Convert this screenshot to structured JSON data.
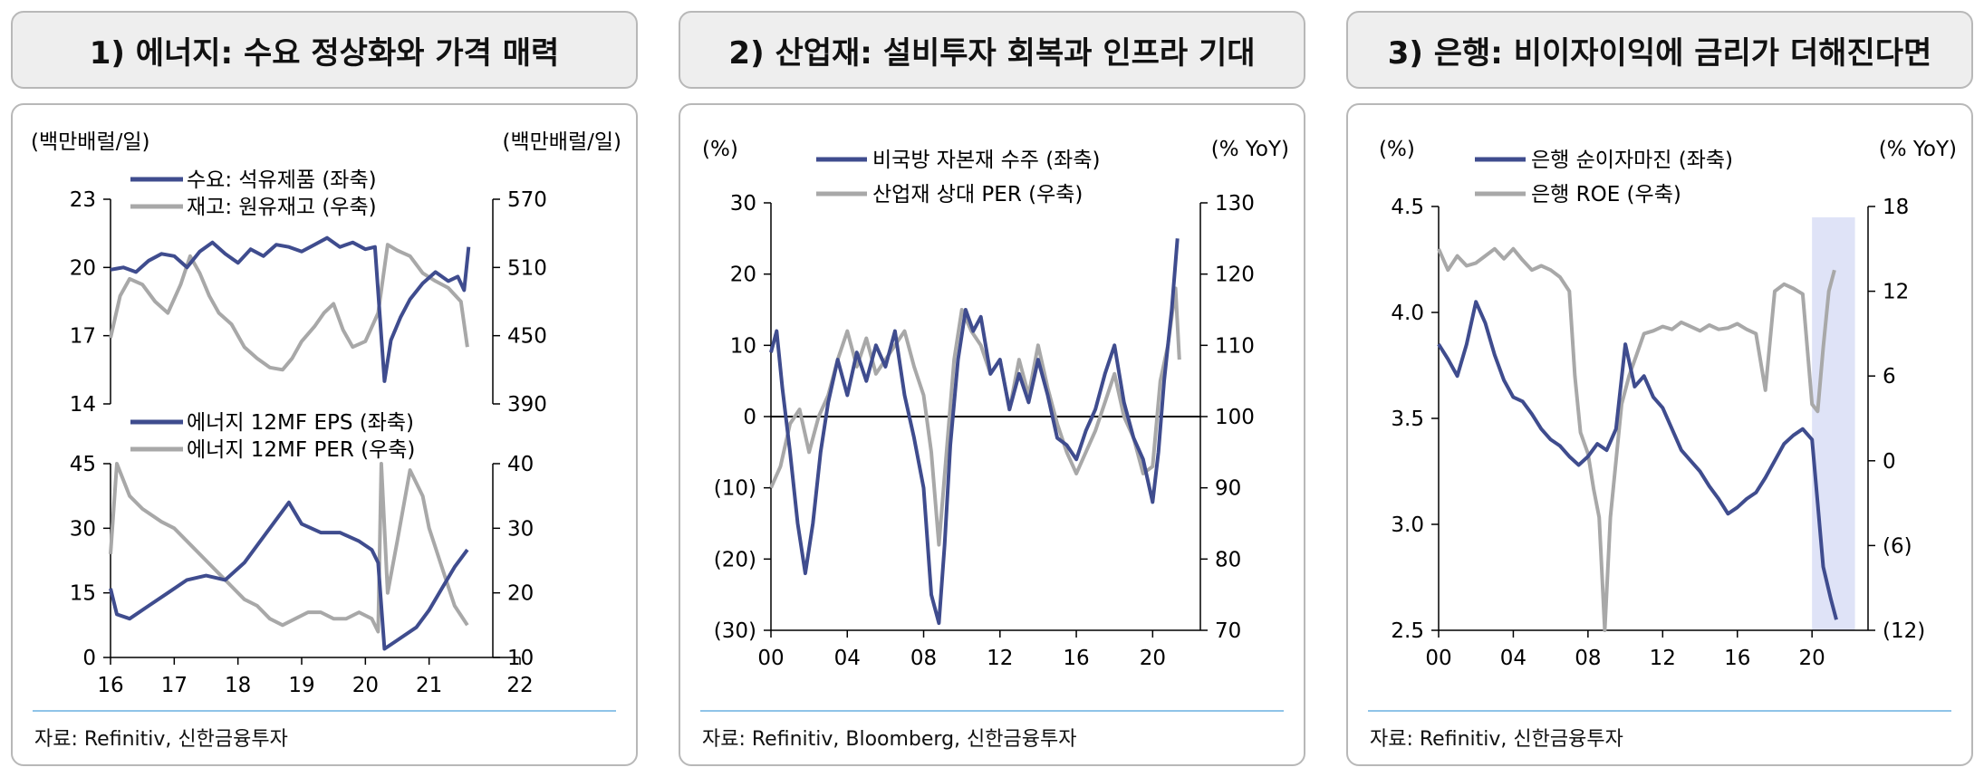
{
  "panels": [
    {
      "title": "1) 에너지: 수요 정상화와 가격 매력",
      "source": "자료: Refinitiv, 신한금융투자"
    },
    {
      "title": "2) 산업재: 설비투자 회복과 인프라 기대",
      "source": "자료: Refinitiv, Bloomberg, 신한금융투자"
    },
    {
      "title": "3) 은행: 비이자이익에 금리가 더해진다면",
      "source": "자료: Refinitiv, 신한금융투자"
    }
  ],
  "chart_data": [
    {
      "type": "line",
      "panel": 1,
      "left_unit": "(백만배럴/일)",
      "right_unit": "(백만배럴/일)",
      "x_ticks": [
        "16",
        "17",
        "18",
        "19",
        "20",
        "21",
        "22"
      ],
      "xlim": [
        2016,
        2022
      ],
      "ylim_left": [
        14,
        23
      ],
      "yticks_left": [
        "23",
        "20",
        "17",
        "14"
      ],
      "ylim_right": [
        390,
        570
      ],
      "yticks_right": [
        "570",
        "510",
        "450",
        "390"
      ],
      "colors": {
        "left": "#3f4c8e",
        "right": "#a8a8a8"
      },
      "series": [
        {
          "name": "수요: 석유제품 (좌축)",
          "axis": "left",
          "x": [
            2016.0,
            2016.2,
            2016.4,
            2016.6,
            2016.8,
            2017.0,
            2017.2,
            2017.4,
            2017.6,
            2017.8,
            2018.0,
            2018.2,
            2018.4,
            2018.6,
            2018.8,
            2019.0,
            2019.2,
            2019.4,
            2019.6,
            2019.8,
            2020.0,
            2020.15,
            2020.3,
            2020.4,
            2020.55,
            2020.7,
            2020.9,
            2021.1,
            2021.3,
            2021.45,
            2021.55,
            2021.62
          ],
          "y": [
            19.9,
            20.0,
            19.8,
            20.3,
            20.6,
            20.5,
            20.0,
            20.7,
            21.1,
            20.6,
            20.2,
            20.8,
            20.5,
            21.0,
            20.9,
            20.7,
            21.0,
            21.3,
            20.9,
            21.1,
            20.8,
            20.9,
            15.0,
            16.8,
            17.8,
            18.6,
            19.3,
            19.8,
            19.4,
            19.6,
            19.0,
            20.9
          ]
        },
        {
          "name": "재고: 원유재고 (우축)",
          "axis": "right",
          "x": [
            2016.0,
            2016.15,
            2016.3,
            2016.5,
            2016.7,
            2016.9,
            2017.1,
            2017.25,
            2017.4,
            2017.55,
            2017.7,
            2017.9,
            2018.1,
            2018.3,
            2018.5,
            2018.7,
            2018.85,
            2019.0,
            2019.2,
            2019.35,
            2019.5,
            2019.65,
            2019.8,
            2020.0,
            2020.2,
            2020.35,
            2020.5,
            2020.7,
            2020.9,
            2021.1,
            2021.3,
            2021.5,
            2021.6
          ],
          "y": [
            448,
            485,
            500,
            495,
            480,
            470,
            495,
            520,
            505,
            485,
            470,
            460,
            440,
            430,
            422,
            420,
            430,
            445,
            458,
            470,
            478,
            455,
            440,
            445,
            470,
            530,
            525,
            520,
            505,
            498,
            492,
            480,
            440
          ]
        }
      ],
      "sub_chart": {
        "type": "line",
        "x_ticks": [
          "16",
          "17",
          "18",
          "19",
          "20",
          "21",
          "22"
        ],
        "ylim_left": [
          0,
          45
        ],
        "yticks_left": [
          "45",
          "30",
          "15",
          "0"
        ],
        "ylim_right": [
          10,
          40
        ],
        "yticks_right": [
          "40",
          "30",
          "20",
          "10"
        ],
        "series": [
          {
            "name": "에너지 12MF EPS (좌축)",
            "axis": "left",
            "x": [
              2016.0,
              2016.1,
              2016.3,
              2016.6,
              2016.9,
              2017.2,
              2017.5,
              2017.8,
              2018.1,
              2018.4,
              2018.7,
              2018.8,
              2019.0,
              2019.3,
              2019.6,
              2019.9,
              2020.1,
              2020.2,
              2020.3,
              2020.5,
              2020.8,
              2021.0,
              2021.2,
              2021.4,
              2021.6
            ],
            "y": [
              16,
              10,
              9,
              12,
              15,
              18,
              19,
              18,
              22,
              28,
              34,
              36,
              31,
              29,
              29,
              27,
              25,
              22,
              2,
              4,
              7,
              11,
              16,
              21,
              25
            ]
          },
          {
            "name": "에너지 12MF PER (우축)",
            "axis": "right",
            "x": [
              2016.0,
              2016.1,
              2016.3,
              2016.5,
              2016.8,
              2017.0,
              2017.3,
              2017.5,
              2017.7,
              2017.9,
              2018.1,
              2018.3,
              2018.5,
              2018.7,
              2018.9,
              2019.1,
              2019.3,
              2019.5,
              2019.7,
              2019.9,
              2020.1,
              2020.2,
              2020.25,
              2020.3,
              2020.35,
              2020.5,
              2020.7,
              2020.9,
              2021.0,
              2021.2,
              2021.4,
              2021.6
            ],
            "y": [
              26,
              40,
              35,
              33,
              31,
              30,
              27,
              25,
              23,
              21,
              19,
              18,
              16,
              15,
              16,
              17,
              17,
              16,
              16,
              17,
              16,
              14,
              40,
              30,
              20,
              28,
              39,
              35,
              30,
              24,
              18,
              15
            ]
          }
        ]
      }
    },
    {
      "type": "line",
      "panel": 2,
      "left_unit": "(%)",
      "right_unit": "(% YoY)",
      "x_ticks": [
        "00",
        "04",
        "08",
        "12",
        "16",
        "20"
      ],
      "xlim": [
        2000,
        2022.5
      ],
      "ylim_left": [
        -30,
        30
      ],
      "yticks_left": [
        "30",
        "20",
        "10",
        "0",
        "(10)",
        "(20)",
        "(30)"
      ],
      "ylim_right": [
        70,
        130
      ],
      "yticks_right": [
        "130",
        "120",
        "110",
        "100",
        "90",
        "80",
        "70"
      ],
      "colors": {
        "left": "#3f4c8e",
        "right": "#a8a8a8"
      },
      "series": [
        {
          "name": "비국방 자본재 수주 (좌축)",
          "axis": "left",
          "x": [
            2000.0,
            2000.3,
            2000.6,
            2001.0,
            2001.4,
            2001.8,
            2002.2,
            2002.6,
            2003.0,
            2003.5,
            2004.0,
            2004.5,
            2005.0,
            2005.5,
            2006.0,
            2006.5,
            2007.0,
            2007.5,
            2008.0,
            2008.4,
            2008.8,
            2009.1,
            2009.4,
            2009.8,
            2010.2,
            2010.6,
            2011.0,
            2011.5,
            2012.0,
            2012.5,
            2013.0,
            2013.5,
            2014.0,
            2014.5,
            2015.0,
            2015.5,
            2016.0,
            2016.5,
            2017.0,
            2017.5,
            2018.0,
            2018.5,
            2019.0,
            2019.5,
            2020.0,
            2020.3,
            2020.6,
            2021.0,
            2021.3
          ],
          "y": [
            9,
            12,
            4,
            -5,
            -15,
            -22,
            -15,
            -5,
            2,
            8,
            3,
            9,
            5,
            10,
            7,
            12,
            3,
            -3,
            -10,
            -25,
            -29,
            -18,
            -4,
            8,
            15,
            12,
            14,
            6,
            8,
            1,
            6,
            2,
            8,
            3,
            -3,
            -4,
            -6,
            -2,
            1,
            6,
            10,
            2,
            -3,
            -6,
            -12,
            -5,
            5,
            15,
            25
          ]
        },
        {
          "name": "산업재 상대 PER (우축)",
          "axis": "right",
          "x": [
            2000.0,
            2000.5,
            2001.0,
            2001.5,
            2002.0,
            2002.5,
            2003.0,
            2003.5,
            2004.0,
            2004.5,
            2005.0,
            2005.5,
            2006.0,
            2006.5,
            2007.0,
            2007.5,
            2008.0,
            2008.4,
            2008.8,
            2009.2,
            2009.6,
            2010.0,
            2010.5,
            2011.0,
            2011.5,
            2012.0,
            2012.5,
            2013.0,
            2013.5,
            2014.0,
            2014.5,
            2015.0,
            2015.5,
            2016.0,
            2016.5,
            2017.0,
            2017.5,
            2018.0,
            2018.5,
            2019.0,
            2019.5,
            2020.0,
            2020.4,
            2020.8,
            2021.2,
            2021.4
          ],
          "y": [
            90,
            93,
            99,
            101,
            95,
            100,
            103,
            108,
            112,
            107,
            111,
            106,
            108,
            110,
            112,
            107,
            103,
            95,
            82,
            95,
            108,
            115,
            112,
            110,
            106,
            108,
            101,
            108,
            103,
            110,
            104,
            99,
            95,
            92,
            95,
            98,
            102,
            106,
            100,
            97,
            92,
            93,
            105,
            110,
            118,
            108
          ]
        }
      ]
    },
    {
      "type": "line",
      "panel": 3,
      "left_unit": "(%)",
      "right_unit": "(% YoY)",
      "x_ticks": [
        "00",
        "04",
        "08",
        "12",
        "16",
        "20"
      ],
      "xlim": [
        2000,
        2023
      ],
      "ylim_left": [
        2.5,
        4.5
      ],
      "yticks_left": [
        "4.5",
        "4.0",
        "3.5",
        "3.0",
        "2.5"
      ],
      "ylim_right": [
        -12,
        18
      ],
      "yticks_right": [
        "18",
        "12",
        "6",
        "0",
        "(6)",
        "(12)"
      ],
      "highlight_x": [
        2020.0,
        2022.3
      ],
      "colors": {
        "left": "#3f4c8e",
        "right": "#a8a8a8",
        "highlight": "#dfe3f7"
      },
      "series": [
        {
          "name": "은행 순이자마진 (좌축)",
          "axis": "left",
          "x": [
            2000.0,
            2000.5,
            2001.0,
            2001.5,
            2002.0,
            2002.5,
            2003.0,
            2003.5,
            2004.0,
            2004.5,
            2005.0,
            2005.5,
            2006.0,
            2006.5,
            2007.0,
            2007.5,
            2008.0,
            2008.5,
            2009.0,
            2009.5,
            2010.0,
            2010.5,
            2011.0,
            2011.5,
            2012.0,
            2012.5,
            2013.0,
            2013.5,
            2014.0,
            2014.5,
            2015.0,
            2015.5,
            2016.0,
            2016.5,
            2017.0,
            2017.5,
            2018.0,
            2018.5,
            2019.0,
            2019.5,
            2020.0,
            2020.3,
            2020.6,
            2021.0,
            2021.3
          ],
          "y": [
            3.85,
            3.78,
            3.7,
            3.85,
            4.05,
            3.95,
            3.8,
            3.68,
            3.6,
            3.58,
            3.52,
            3.45,
            3.4,
            3.37,
            3.32,
            3.28,
            3.32,
            3.38,
            3.35,
            3.45,
            3.85,
            3.65,
            3.7,
            3.6,
            3.55,
            3.45,
            3.35,
            3.3,
            3.25,
            3.18,
            3.12,
            3.05,
            3.08,
            3.12,
            3.15,
            3.22,
            3.3,
            3.38,
            3.42,
            3.45,
            3.4,
            3.1,
            2.8,
            2.65,
            2.55
          ]
        },
        {
          "name": "은행 ROE (우축)",
          "axis": "right",
          "x": [
            2000.0,
            2000.5,
            2001.0,
            2001.5,
            2002.0,
            2002.5,
            2003.0,
            2003.5,
            2004.0,
            2004.5,
            2005.0,
            2005.5,
            2006.0,
            2006.5,
            2007.0,
            2007.3,
            2007.6,
            2008.0,
            2008.3,
            2008.6,
            2008.9,
            2009.2,
            2009.5,
            2009.8,
            2010.2,
            2010.6,
            2011.0,
            2011.5,
            2012.0,
            2012.5,
            2013.0,
            2013.5,
            2014.0,
            2014.5,
            2015.0,
            2015.5,
            2016.0,
            2016.5,
            2017.0,
            2017.5,
            2018.0,
            2018.5,
            2019.0,
            2019.5,
            2020.0,
            2020.3,
            2020.6,
            2020.9,
            2021.2
          ],
          "y": [
            15,
            13.5,
            14.5,
            13.8,
            14,
            14.5,
            15,
            14.3,
            15,
            14.2,
            13.5,
            13.8,
            13.5,
            13.0,
            12.0,
            6.0,
            2.0,
            0.5,
            -2.0,
            -4.0,
            -12.0,
            -4.0,
            0.0,
            4.0,
            6.0,
            7.5,
            9.0,
            9.2,
            9.5,
            9.3,
            9.8,
            9.5,
            9.2,
            9.6,
            9.3,
            9.4,
            9.7,
            9.3,
            9.0,
            5.0,
            12.0,
            12.5,
            12.2,
            11.8,
            4.0,
            3.5,
            8.0,
            12.0,
            13.5
          ]
        }
      ]
    }
  ]
}
